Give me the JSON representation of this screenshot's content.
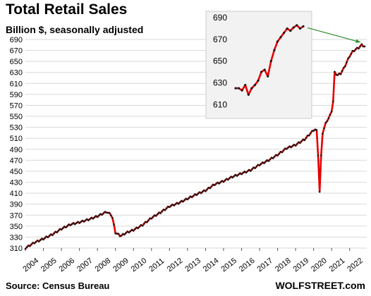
{
  "title": "Total Retail Sales",
  "subtitle": "Billion $, seasonally adjusted",
  "source": "Source: Census Bureau",
  "brand": "WOLFSTREET.com",
  "colors": {
    "line": "#e60000",
    "marker": "#1a1a1a",
    "grid": "#d9d9d9",
    "inset_bg": "#f2f2f2",
    "arrow": "#2e8b2e"
  },
  "chart_data": [
    {
      "type": "line",
      "title": "Total Retail Sales",
      "subtitle": "Billion $, seasonally adjusted",
      "xlabel": "",
      "ylabel": "",
      "x_tick_labels": [
        "2004",
        "2005",
        "2006",
        "2007",
        "2008",
        "2009",
        "2010",
        "2011",
        "2012",
        "2013",
        "2014",
        "2015",
        "2016",
        "2017",
        "2018",
        "2019",
        "2020",
        "2021",
        "2022"
      ],
      "y_ticks": [
        310,
        330,
        350,
        370,
        390,
        410,
        430,
        450,
        470,
        490,
        510,
        530,
        550,
        570,
        590,
        610,
        630,
        650,
        670,
        690
      ],
      "xlim": [
        2004.0,
        2022.95
      ],
      "ylim": [
        310,
        690
      ],
      "grid": true,
      "series_anchors": [
        [
          2004.0,
          310
        ],
        [
          2004.5,
          320
        ],
        [
          2005.0,
          327
        ],
        [
          2005.5,
          335
        ],
        [
          2006.0,
          345
        ],
        [
          2006.5,
          353
        ],
        [
          2007.0,
          357
        ],
        [
          2007.5,
          362
        ],
        [
          2008.0,
          368
        ],
        [
          2008.5,
          376
        ],
        [
          2008.8,
          370
        ],
        [
          2009.0,
          338
        ],
        [
          2009.3,
          332
        ],
        [
          2009.6,
          338
        ],
        [
          2010.0,
          343
        ],
        [
          2010.5,
          352
        ],
        [
          2011.0,
          365
        ],
        [
          2011.5,
          375
        ],
        [
          2012.0,
          386
        ],
        [
          2012.5,
          392
        ],
        [
          2013.0,
          400
        ],
        [
          2013.5,
          408
        ],
        [
          2014.0,
          415
        ],
        [
          2014.5,
          426
        ],
        [
          2015.0,
          432
        ],
        [
          2015.5,
          440
        ],
        [
          2016.0,
          446
        ],
        [
          2016.5,
          452
        ],
        [
          2017.0,
          462
        ],
        [
          2017.5,
          470
        ],
        [
          2018.0,
          480
        ],
        [
          2018.5,
          492
        ],
        [
          2019.0,
          498
        ],
        [
          2019.5,
          508
        ],
        [
          2020.0,
          525
        ],
        [
          2020.16,
          527
        ],
        [
          2020.25,
          480
        ],
        [
          2020.33,
          410
        ],
        [
          2020.42,
          480
        ],
        [
          2020.5,
          520
        ],
        [
          2020.7,
          540
        ],
        [
          2020.9,
          550
        ],
        [
          2021.0,
          560
        ],
        [
          2021.08,
          575
        ],
        [
          2021.16,
          630
        ],
        [
          2021.33,
          625
        ],
        [
          2021.5,
          628
        ],
        [
          2021.67,
          637
        ],
        [
          2021.83,
          648
        ],
        [
          2022.0,
          660
        ],
        [
          2022.17,
          668
        ],
        [
          2022.33,
          672
        ],
        [
          2022.5,
          675
        ],
        [
          2022.67,
          680
        ],
        [
          2022.85,
          677
        ]
      ],
      "series": [
        {
          "values": "series_anchors"
        }
      ]
    },
    {
      "type": "line",
      "title": "",
      "y_ticks": [
        610,
        630,
        650,
        670,
        690
      ],
      "ylim": [
        605,
        692
      ],
      "grid": false,
      "note_arrow_to": "end of main series",
      "values": [
        625,
        625,
        623,
        628,
        619,
        625,
        628,
        632,
        640,
        642,
        636,
        650,
        660,
        668,
        672,
        676,
        680,
        678,
        681,
        683,
        680,
        682
      ]
    }
  ]
}
